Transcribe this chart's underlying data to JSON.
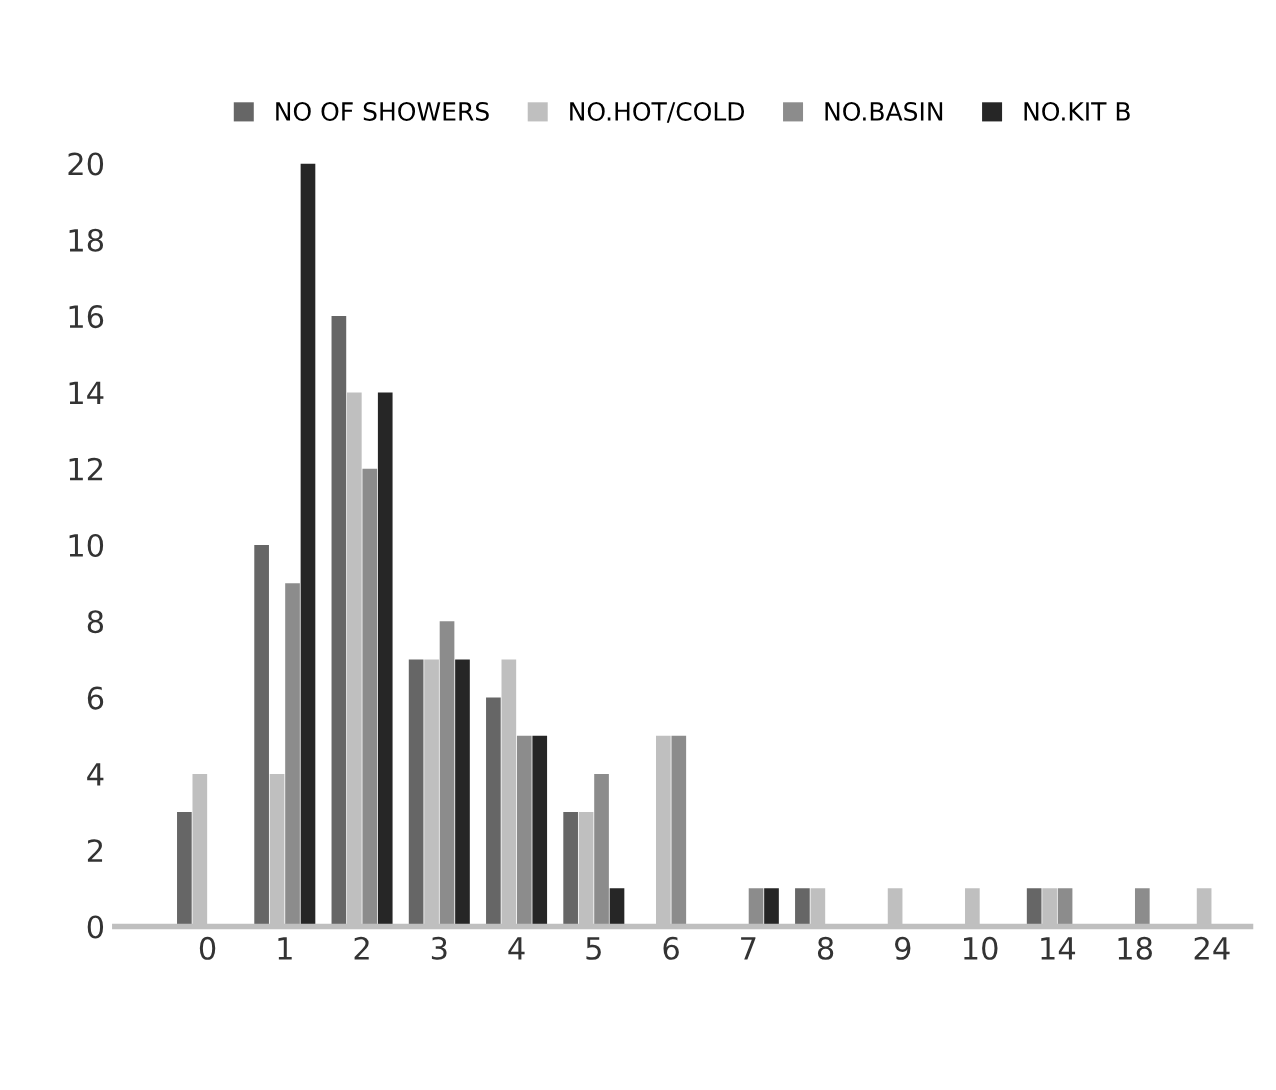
{
  "chart_data": {
    "type": "bar",
    "categories": [
      "0",
      "1",
      "2",
      "3",
      "4",
      "5",
      "6",
      "7",
      "8",
      "9",
      "10",
      "14",
      "18",
      "24"
    ],
    "series": [
      {
        "name": "NO OF SHOWERS",
        "color": "#666666",
        "values": [
          3,
          10,
          16,
          7,
          6,
          3,
          0,
          0,
          1,
          0,
          0,
          1,
          0,
          0
        ]
      },
      {
        "name": "NO.HOT/COLD",
        "color": "#bfbfbf",
        "values": [
          4,
          4,
          14,
          7,
          7,
          3,
          5,
          0,
          1,
          1,
          1,
          1,
          0,
          1
        ]
      },
      {
        "name": "NO.BASIN",
        "color": "#8c8c8c",
        "values": [
          0,
          9,
          12,
          8,
          5,
          4,
          5,
          1,
          0,
          0,
          0,
          1,
          1,
          0
        ]
      },
      {
        "name": "NO.KIT B",
        "color": "#262626",
        "values": [
          0,
          20,
          14,
          7,
          5,
          1,
          0,
          1,
          0,
          0,
          0,
          0,
          0,
          0
        ]
      }
    ],
    "ylim": [
      0,
      20
    ],
    "yticks": [
      0,
      2,
      4,
      6,
      8,
      10,
      12,
      14,
      16,
      18,
      20
    ],
    "grid": false,
    "legend": "top"
  }
}
